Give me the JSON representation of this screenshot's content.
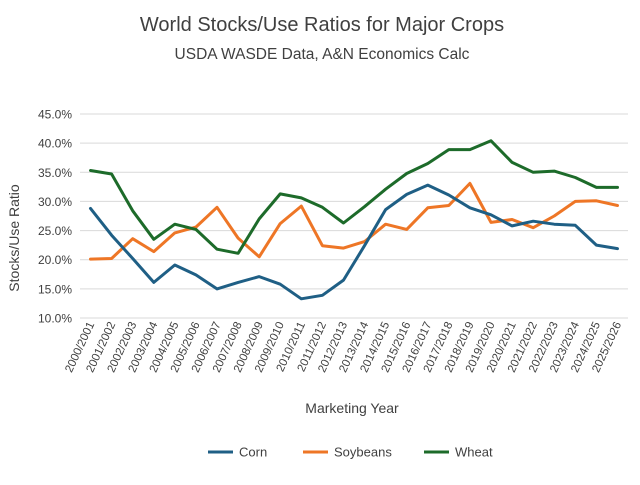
{
  "chart_data": {
    "type": "line",
    "title": "World Stocks/Use Ratios for Major Crops",
    "subtitle": "USDA WASDE Data, A&N Economics Calc",
    "xlabel": "Marketing Year",
    "ylabel": "Stocks/Use Ratio",
    "ylim": [
      10,
      45
    ],
    "yticks": [
      "10.0%",
      "15.0%",
      "20.0%",
      "25.0%",
      "30.0%",
      "35.0%",
      "40.0%",
      "45.0%"
    ],
    "grid": true,
    "legend_position": "bottom",
    "categories": [
      "2000/2001",
      "2001/2002",
      "2002/2003",
      "2003/2004",
      "2004/2005",
      "2005/2006",
      "2006/2007",
      "2007/2008",
      "2008/2009",
      "2009/2010",
      "2010/2011",
      "2011/2012",
      "2012/2013",
      "2013/2014",
      "2014/2015",
      "2015/2016",
      "2016/2017",
      "2017/2018",
      "2018/2019",
      "2019/2020",
      "2020/2021",
      "2021/2022",
      "2022/2023",
      "2023/2024",
      "2024/2025",
      "2025/2026"
    ],
    "series": [
      {
        "name": "Corn",
        "color": "#1f5f85",
        "values": [
          28.8,
          24.2,
          20.2,
          16.1,
          19.1,
          17.4,
          15.0,
          16.1,
          17.1,
          15.8,
          13.3,
          13.9,
          16.5,
          22.4,
          28.6,
          31.2,
          32.8,
          31.1,
          28.9,
          27.7,
          25.8,
          26.6,
          26.1,
          25.9,
          22.5,
          21.9
        ]
      },
      {
        "name": "Soybeans",
        "color": "#ee7626",
        "values": [
          20.1,
          20.2,
          23.6,
          21.4,
          24.6,
          25.6,
          29.0,
          23.7,
          20.5,
          26.2,
          29.2,
          22.4,
          22.0,
          23.1,
          26.1,
          25.2,
          28.9,
          29.3,
          33.1,
          26.4,
          26.9,
          25.5,
          27.5,
          30.0,
          30.1,
          29.3
        ]
      },
      {
        "name": "Wheat",
        "color": "#1d6b2a",
        "values": [
          35.3,
          34.7,
          28.4,
          23.5,
          26.1,
          25.2,
          21.8,
          21.1,
          27.0,
          31.3,
          30.6,
          29.0,
          26.3,
          29.1,
          32.1,
          34.8,
          36.5,
          38.9,
          38.9,
          40.4,
          36.7,
          35.0,
          35.2,
          34.1,
          32.4,
          32.4
        ]
      }
    ]
  }
}
